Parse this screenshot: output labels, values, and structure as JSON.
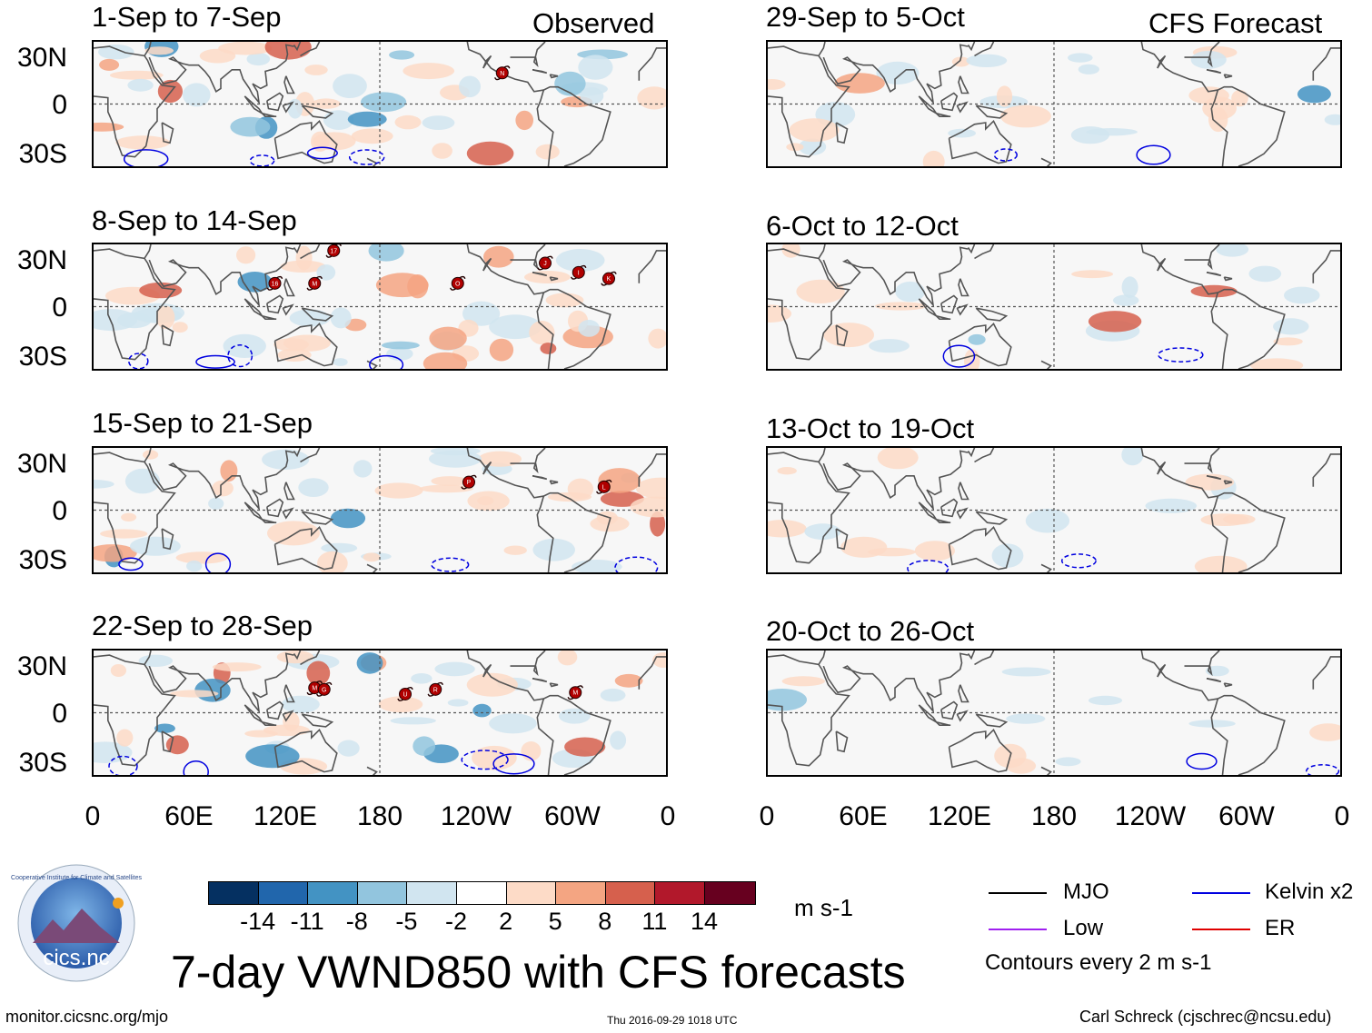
{
  "figure": {
    "title": "7-day VWND850 with CFS forecasts",
    "url": "monitor.cicsnc.org/mjo",
    "timestamp": "Thu 2016-09-29 1018 UTC",
    "author": "Carl Schreck (cjschrec@ncsu.edu)",
    "logo_text": "cics.nc",
    "logo_ring_text": "Cooperative Institute for Climate and Satellites"
  },
  "columns": {
    "left_label": "Observed",
    "right_label": "CFS Forecast"
  },
  "panels_left": [
    {
      "title": "1-Sep to 7-Sep"
    },
    {
      "title": "8-Sep to 14-Sep"
    },
    {
      "title": "15-Sep to 21-Sep"
    },
    {
      "title": "22-Sep to 28-Sep"
    }
  ],
  "panels_right": [
    {
      "title": "29-Sep to 5-Oct"
    },
    {
      "title": "6-Oct to 12-Oct"
    },
    {
      "title": "13-Oct to 19-Oct"
    },
    {
      "title": "20-Oct to 26-Oct"
    }
  ],
  "chart_data": {
    "type": "heatmap",
    "variable": "VWND850",
    "units": "m s-1",
    "xticks": [
      "0",
      "60E",
      "120E",
      "180",
      "120W",
      "60W",
      "0"
    ],
    "yticks": [
      "30N",
      "0",
      "30S"
    ],
    "xlim": [
      0,
      360
    ],
    "ylim": [
      -40,
      40
    ],
    "colorbar": {
      "levels": [
        "-14",
        "-11",
        "-8",
        "-5",
        "-2",
        "2",
        "5",
        "8",
        "11",
        "14"
      ],
      "colors": [
        "#053061",
        "#2166ac",
        "#4393c3",
        "#92c5de",
        "#d1e5f0",
        "#ffffff",
        "#fddbc7",
        "#f4a582",
        "#d6604d",
        "#b2182b",
        "#67001f"
      ]
    },
    "legend": [
      {
        "label": "MJO",
        "color": "#000000"
      },
      {
        "label": "Kelvin x2",
        "color": "#0000e0"
      },
      {
        "label": "Low",
        "color": "#a020f0"
      },
      {
        "label": "ER",
        "color": "#e00000"
      }
    ],
    "contour_note": "Contours every 2 m s-1",
    "storm_markers": {
      "1-Sep to 7-Sep": [
        "N"
      ],
      "8-Sep to 14-Sep": [
        "16",
        "M",
        "17",
        "O",
        "J",
        "I",
        "K"
      ],
      "15-Sep to 21-Sep": [
        "P",
        "L"
      ],
      "22-Sep to 28-Sep": [
        "M",
        "G",
        "U",
        "R",
        "M"
      ]
    }
  }
}
